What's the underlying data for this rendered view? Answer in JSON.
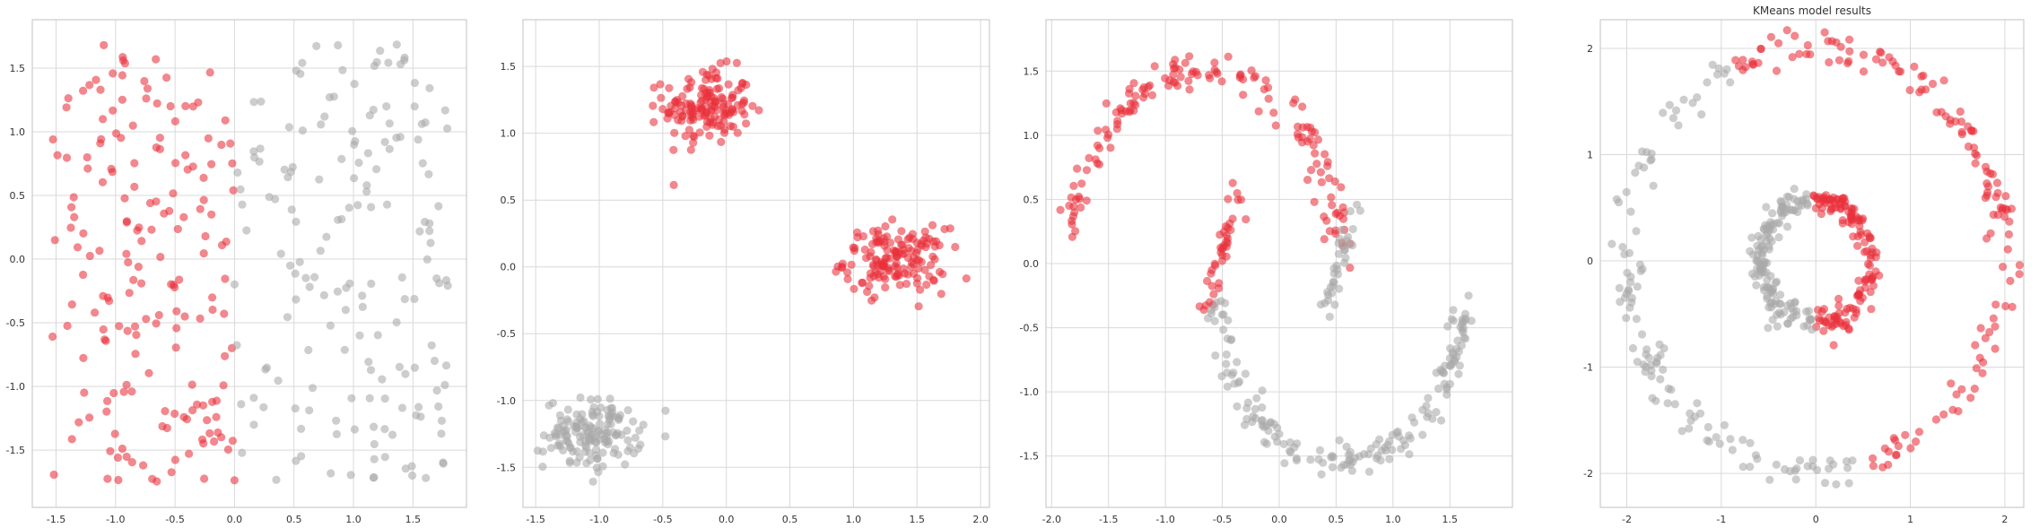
{
  "colors": {
    "cluster_0": "#e8313b",
    "cluster_1": "#a9a9a9",
    "grid": "#d9d9d9",
    "frame": "#cccccc"
  },
  "chart_data": [
    {
      "type": "scatter",
      "title": "",
      "xlabel": "",
      "ylabel": "",
      "xlim": [
        -1.7,
        1.95
      ],
      "ylim": [
        -1.95,
        1.88
      ],
      "xticks": [
        -1.5,
        -1.0,
        -0.5,
        0.0,
        0.5,
        1.0,
        1.5
      ],
      "yticks": [
        -1.5,
        -1.0,
        -0.5,
        0.0,
        0.5,
        1.0,
        1.5
      ],
      "grid": true,
      "series": [
        {
          "cluster": 0,
          "pattern": "uniform",
          "xrange": [
            -1.55,
            0.0
          ],
          "yrange": [
            -1.75,
            1.7
          ],
          "n": 180
        },
        {
          "cluster": 1,
          "pattern": "uniform",
          "xrange": [
            0.0,
            1.8
          ],
          "yrange": [
            -1.78,
            1.72
          ],
          "n": 170
        }
      ]
    },
    {
      "type": "scatter",
      "title": "",
      "xlabel": "",
      "ylabel": "",
      "xlim": [
        -1.6,
        2.07
      ],
      "ylim": [
        -1.8,
        1.85
      ],
      "xticks": [
        -1.5,
        -1.0,
        -0.5,
        0.0,
        0.5,
        1.0,
        1.5,
        2.0
      ],
      "yticks": [
        -1.5,
        -1.0,
        -0.5,
        0.0,
        0.5,
        1.0,
        1.5
      ],
      "grid": true,
      "series": [
        {
          "cluster": 0,
          "pattern": "blob",
          "center": [
            -0.15,
            1.2
          ],
          "spread": [
            0.17,
            0.14
          ],
          "n": 150
        },
        {
          "cluster": 0,
          "pattern": "blob",
          "center": [
            1.33,
            0.05
          ],
          "spread": [
            0.2,
            0.12
          ],
          "n": 150
        },
        {
          "cluster": 1,
          "pattern": "blob",
          "center": [
            -1.05,
            -1.25
          ],
          "spread": [
            0.19,
            0.13
          ],
          "n": 150
        }
      ]
    },
    {
      "type": "scatter",
      "title": "",
      "xlabel": "",
      "ylabel": "",
      "xlim": [
        -2.05,
        2.05
      ],
      "ylim": [
        -1.9,
        1.9
      ],
      "xticks": [
        -2.0,
        -1.5,
        -1.0,
        -0.5,
        0.0,
        0.5,
        1.0,
        1.5
      ],
      "yticks": [
        -1.5,
        -1.0,
        -0.5,
        0.0,
        0.5,
        1.0,
        1.5
      ],
      "grid": true,
      "series": [
        {
          "cluster": 0,
          "pattern": "arc",
          "center": [
            -0.65,
            -0.05
          ],
          "radius": 1.2,
          "yscale": 1.3,
          "tmin": 0.1,
          "tmax": 3.02,
          "noise": 0.06,
          "n": 150
        },
        {
          "cluster": 0,
          "pattern": "line",
          "xrange": [
            -0.65,
            -0.35
          ],
          "yrange": [
            -0.35,
            0.6
          ],
          "noise": 0.04,
          "n": 40
        },
        {
          "cluster": 1,
          "pattern": "arc",
          "center": [
            0.55,
            -0.15
          ],
          "radius": 1.1,
          "yscale": 1.25,
          "tmin": 3.25,
          "tmax": 6.2,
          "noise": 0.06,
          "n": 170
        },
        {
          "cluster": 1,
          "pattern": "line",
          "xrange": [
            0.4,
            0.7
          ],
          "yrange": [
            -0.4,
            0.5
          ],
          "noise": 0.04,
          "n": 35
        }
      ]
    },
    {
      "type": "scatter",
      "title": "KMeans model results",
      "xlabel": "",
      "ylabel": "",
      "xlim": [
        -2.28,
        2.2
      ],
      "ylim": [
        -2.32,
        2.27
      ],
      "xticks": [
        -2,
        -1,
        0,
        1,
        2
      ],
      "yticks": [
        -2,
        -1,
        0,
        1,
        2
      ],
      "grid": true,
      "series": [
        {
          "cluster": 0,
          "pattern": "ring",
          "center": [
            0,
            0
          ],
          "radius": 2.0,
          "noise": 0.08,
          "amin": -1.35,
          "amax": 2.0,
          "n": 140
        },
        {
          "cluster": 1,
          "pattern": "ring",
          "center": [
            0,
            0
          ],
          "radius": 2.0,
          "noise": 0.08,
          "amin": 2.0,
          "amax": 4.93,
          "n": 120
        },
        {
          "cluster": 0,
          "pattern": "ring",
          "center": [
            0,
            0
          ],
          "radius": 0.58,
          "noise": 0.06,
          "amin": -1.6,
          "amax": 1.7,
          "n": 140
        },
        {
          "cluster": 1,
          "pattern": "ring",
          "center": [
            0,
            0
          ],
          "radius": 0.58,
          "noise": 0.06,
          "amin": 1.7,
          "amax": 4.68,
          "n": 140
        }
      ]
    }
  ]
}
